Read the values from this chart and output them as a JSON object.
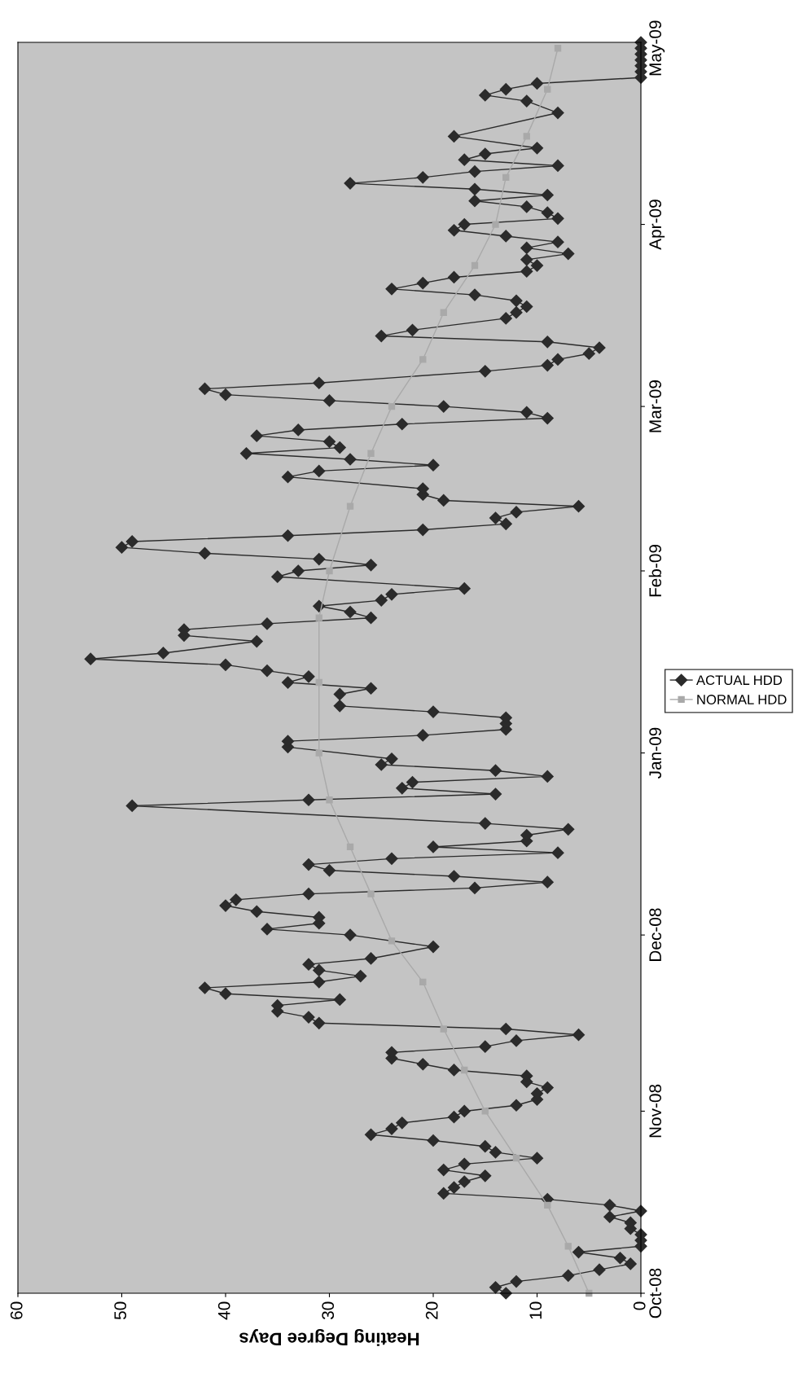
{
  "chart_data": {
    "type": "line",
    "orientation": "horizontal",
    "xlabel": "Heating Degree Days",
    "xlim": [
      60,
      0
    ],
    "xticks": [
      0,
      10,
      20,
      30,
      40,
      50,
      60
    ],
    "ylim": [
      "2008-10-01",
      "2009-05-02"
    ],
    "yticks": [
      {
        "value": "2008-10-01",
        "label": "Oct-08"
      },
      {
        "value": "2008-11-01",
        "label": "Nov-08"
      },
      {
        "value": "2008-12-01",
        "label": "Dec-08"
      },
      {
        "value": "2009-01-01",
        "label": "Jan-09"
      },
      {
        "value": "2009-02-01",
        "label": "Feb-09"
      },
      {
        "value": "2009-03-01",
        "label": "Mar-09"
      },
      {
        "value": "2009-04-01",
        "label": "Apr-09"
      },
      {
        "value": "2009-05-01",
        "label": "May-09"
      }
    ],
    "grid": false,
    "legend": "right",
    "series": [
      {
        "name": "ACTUAL HDD",
        "color": "#2b2b2b",
        "marker": "diamond",
        "x": [
          "2008-10-01",
          "2008-10-02",
          "2008-10-03",
          "2008-10-04",
          "2008-10-05",
          "2008-10-06",
          "2008-10-07",
          "2008-10-08",
          "2008-10-09",
          "2008-10-10",
          "2008-10-11",
          "2008-10-12",
          "2008-10-13",
          "2008-10-14",
          "2008-10-15",
          "2008-10-16",
          "2008-10-17",
          "2008-10-18",
          "2008-10-19",
          "2008-10-20",
          "2008-10-21",
          "2008-10-22",
          "2008-10-23",
          "2008-10-24",
          "2008-10-25",
          "2008-10-26",
          "2008-10-27",
          "2008-10-28",
          "2008-10-29",
          "2008-10-30",
          "2008-10-31",
          "2008-11-01",
          "2008-11-02",
          "2008-11-03",
          "2008-11-04",
          "2008-11-05",
          "2008-11-06",
          "2008-11-07",
          "2008-11-08",
          "2008-11-09",
          "2008-11-10",
          "2008-11-11",
          "2008-11-12",
          "2008-11-13",
          "2008-11-14",
          "2008-11-15",
          "2008-11-16",
          "2008-11-17",
          "2008-11-18",
          "2008-11-19",
          "2008-11-20",
          "2008-11-21",
          "2008-11-22",
          "2008-11-23",
          "2008-11-24",
          "2008-11-25",
          "2008-11-26",
          "2008-11-27",
          "2008-11-29",
          "2008-12-01",
          "2008-12-02",
          "2008-12-03",
          "2008-12-04",
          "2008-12-05",
          "2008-12-06",
          "2008-12-07",
          "2008-12-08",
          "2008-12-09",
          "2008-12-10",
          "2008-12-11",
          "2008-12-12",
          "2008-12-13",
          "2008-12-14",
          "2008-12-15",
          "2008-12-16",
          "2008-12-17",
          "2008-12-18",
          "2008-12-19",
          "2008-12-20",
          "2008-12-23",
          "2008-12-24",
          "2008-12-25",
          "2008-12-26",
          "2008-12-27",
          "2008-12-28",
          "2008-12-29",
          "2008-12-30",
          "2008-12-31",
          "2009-01-02",
          "2009-01-03",
          "2009-01-04",
          "2009-01-05",
          "2009-01-06",
          "2009-01-07",
          "2009-01-08",
          "2009-01-09",
          "2009-01-11",
          "2009-01-12",
          "2009-01-13",
          "2009-01-14",
          "2009-01-15",
          "2009-01-16",
          "2009-01-17",
          "2009-01-18",
          "2009-01-20",
          "2009-01-21",
          "2009-01-22",
          "2009-01-23",
          "2009-01-24",
          "2009-01-25",
          "2009-01-26",
          "2009-01-27",
          "2009-01-28",
          "2009-01-29",
          "2009-01-31",
          "2009-02-01",
          "2009-02-02",
          "2009-02-03",
          "2009-02-04",
          "2009-02-05",
          "2009-02-06",
          "2009-02-07",
          "2009-02-08",
          "2009-02-09",
          "2009-02-10",
          "2009-02-11",
          "2009-02-12",
          "2009-02-13",
          "2009-02-14",
          "2009-02-15",
          "2009-02-17",
          "2009-02-18",
          "2009-02-19",
          "2009-02-20",
          "2009-02-21",
          "2009-02-22",
          "2009-02-23",
          "2009-02-24",
          "2009-02-25",
          "2009-02-26",
          "2009-02-27",
          "2009-02-28",
          "2009-03-01",
          "2009-03-02",
          "2009-03-03",
          "2009-03-04",
          "2009-03-05",
          "2009-03-07",
          "2009-03-08",
          "2009-03-09",
          "2009-03-10",
          "2009-03-11",
          "2009-03-12",
          "2009-03-13",
          "2009-03-14",
          "2009-03-16",
          "2009-03-17",
          "2009-03-18",
          "2009-03-19",
          "2009-03-20",
          "2009-03-21",
          "2009-03-22",
          "2009-03-23",
          "2009-03-24",
          "2009-03-25",
          "2009-03-26",
          "2009-03-27",
          "2009-03-28",
          "2009-03-29",
          "2009-03-30",
          "2009-03-31",
          "2009-04-01",
          "2009-04-02",
          "2009-04-03",
          "2009-04-04",
          "2009-04-05",
          "2009-04-06",
          "2009-04-07",
          "2009-04-08",
          "2009-04-09",
          "2009-04-10",
          "2009-04-11",
          "2009-04-12",
          "2009-04-13",
          "2009-04-14",
          "2009-04-16",
          "2009-04-20",
          "2009-04-22",
          "2009-04-23",
          "2009-04-24",
          "2009-04-25",
          "2009-04-26",
          "2009-04-27",
          "2009-04-28",
          "2009-04-29",
          "2009-04-30",
          "2009-05-01",
          "2009-05-02"
        ],
        "values": [
          13,
          14,
          12,
          7,
          4,
          1,
          2,
          6,
          0,
          0,
          0,
          1,
          1,
          3,
          0,
          3,
          9,
          19,
          18,
          17,
          15,
          19,
          17,
          10,
          14,
          15,
          20,
          26,
          24,
          23,
          18,
          17,
          12,
          10,
          10,
          9,
          11,
          11,
          18,
          21,
          24,
          24,
          15,
          12,
          6,
          13,
          31,
          32,
          35,
          35,
          29,
          40,
          42,
          31,
          27,
          31,
          32,
          26,
          20,
          28,
          36,
          31,
          31,
          37,
          40,
          39,
          32,
          16,
          9,
          18,
          30,
          32,
          24,
          8,
          20,
          11,
          11,
          7,
          15,
          49,
          32,
          14,
          23,
          22,
          9,
          14,
          25,
          24,
          34,
          34,
          21,
          13,
          13,
          13,
          20,
          29,
          29,
          26,
          34,
          32,
          36,
          40,
          53,
          46,
          37,
          44,
          44,
          36,
          26,
          28,
          31,
          25,
          24,
          17,
          35,
          33,
          26,
          31,
          42,
          50,
          49,
          34,
          21,
          13,
          14,
          12,
          6,
          19,
          21,
          21,
          34,
          31,
          20,
          28,
          38,
          29,
          30,
          37,
          33,
          23,
          9,
          11,
          19,
          30,
          40,
          42,
          31,
          15,
          9,
          8,
          5,
          4,
          9,
          25,
          22,
          13,
          12,
          11,
          12,
          16,
          24,
          21,
          18,
          11,
          10,
          11,
          7,
          11,
          8,
          13,
          18,
          17,
          8,
          9,
          11,
          16,
          9,
          16,
          28,
          21,
          16,
          8,
          17,
          15,
          10,
          18,
          8,
          11,
          15,
          13,
          10,
          0,
          0,
          0,
          0,
          0,
          0,
          0
        ]
      },
      {
        "name": "NORMAL HDD",
        "color": "#a9a9a9",
        "marker": "square",
        "x": [
          "2008-10-01",
          "2008-10-09",
          "2008-10-16",
          "2008-10-24",
          "2008-11-01",
          "2008-11-08",
          "2008-11-15",
          "2008-11-23",
          "2008-11-30",
          "2008-12-08",
          "2008-12-16",
          "2008-12-24",
          "2009-01-01",
          "2009-01-13",
          "2009-01-24",
          "2009-02-01",
          "2009-02-12",
          "2009-02-21",
          "2009-03-01",
          "2009-03-09",
          "2009-03-17",
          "2009-03-25",
          "2009-04-01",
          "2009-04-09",
          "2009-04-16",
          "2009-04-24",
          "2009-05-01"
        ],
        "values": [
          5,
          7,
          9,
          12,
          15,
          17,
          19,
          21,
          24,
          26,
          28,
          30,
          31,
          31,
          31,
          30,
          28,
          26,
          24,
          21,
          19,
          16,
          14,
          13,
          11,
          9,
          8
        ]
      }
    ]
  }
}
